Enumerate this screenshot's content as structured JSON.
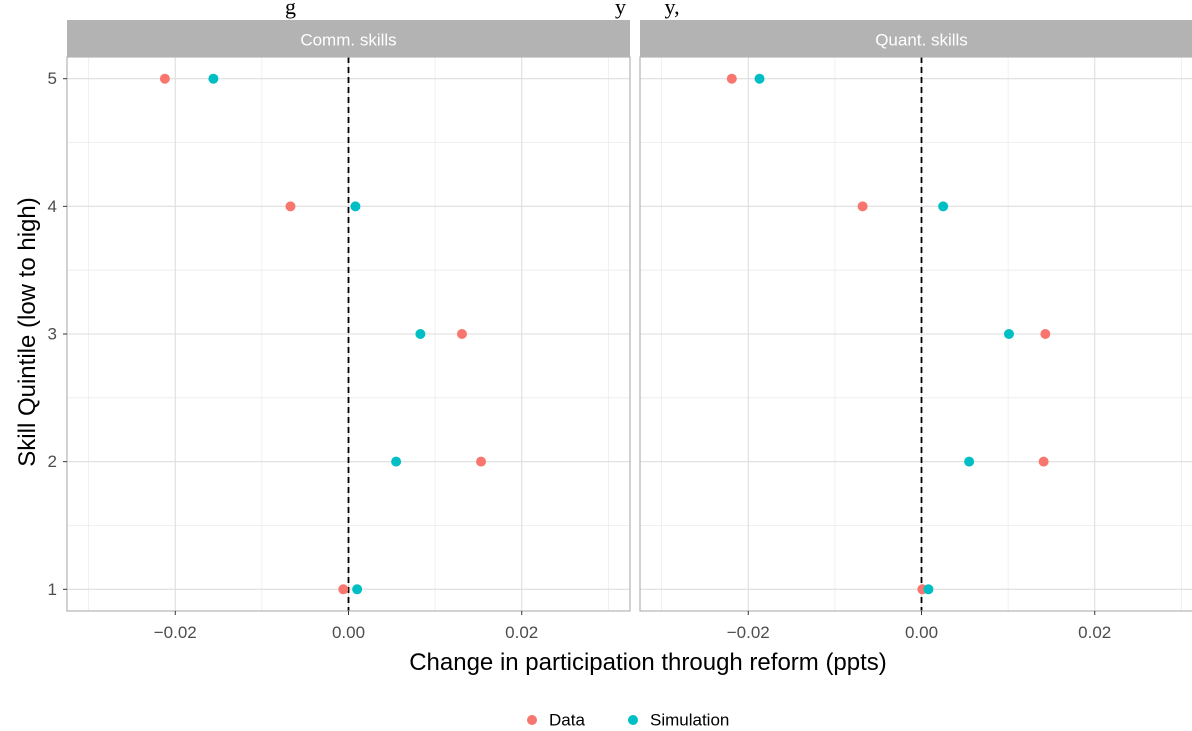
{
  "top_caption": "g                                                          y       y,",
  "chart_data": {
    "type": "scatter",
    "xlabel": "Change in participation through reform (ppts)",
    "ylabel": "Skill Quintile (low to high)",
    "xlim": [
      -0.0325,
      0.0325
    ],
    "ylim": [
      0.83,
      5.17
    ],
    "x_ticks": [
      -0.02,
      0.0,
      0.02
    ],
    "x_tick_labels": [
      "−0.02",
      "0.00",
      "0.02"
    ],
    "y_ticks": [
      1,
      2,
      3,
      4,
      5
    ],
    "y_tick_labels": [
      "1",
      "2",
      "3",
      "4",
      "5"
    ],
    "reference_line_x": 0,
    "grid": true,
    "legend_position": "bottom",
    "series_colors": {
      "Data": "#F8766D",
      "Simulation": "#00BFC4"
    },
    "legend": [
      "Data",
      "Simulation"
    ],
    "panels": [
      {
        "title": "Comm. skills",
        "series": [
          {
            "name": "Data",
            "points": [
              {
                "x": -0.0212,
                "y": 5
              },
              {
                "x": -0.0067,
                "y": 4
              },
              {
                "x": 0.0131,
                "y": 3
              },
              {
                "x": 0.0153,
                "y": 2
              },
              {
                "x": -0.0006,
                "y": 1
              }
            ]
          },
          {
            "name": "Simulation",
            "points": [
              {
                "x": -0.0156,
                "y": 5
              },
              {
                "x": 0.0008,
                "y": 4
              },
              {
                "x": 0.0083,
                "y": 3
              },
              {
                "x": 0.0055,
                "y": 2
              },
              {
                "x": 0.001,
                "y": 1
              }
            ]
          }
        ]
      },
      {
        "title": "Quant. skills",
        "series": [
          {
            "name": "Data",
            "points": [
              {
                "x": -0.0219,
                "y": 5
              },
              {
                "x": -0.0068,
                "y": 4
              },
              {
                "x": 0.0143,
                "y": 3
              },
              {
                "x": 0.0141,
                "y": 2
              },
              {
                "x": 0.0001,
                "y": 1
              }
            ]
          },
          {
            "name": "Simulation",
            "points": [
              {
                "x": -0.0187,
                "y": 5
              },
              {
                "x": 0.0025,
                "y": 4
              },
              {
                "x": 0.0101,
                "y": 3
              },
              {
                "x": 0.0055,
                "y": 2
              },
              {
                "x": 0.0008,
                "y": 1
              }
            ]
          }
        ]
      }
    ]
  }
}
